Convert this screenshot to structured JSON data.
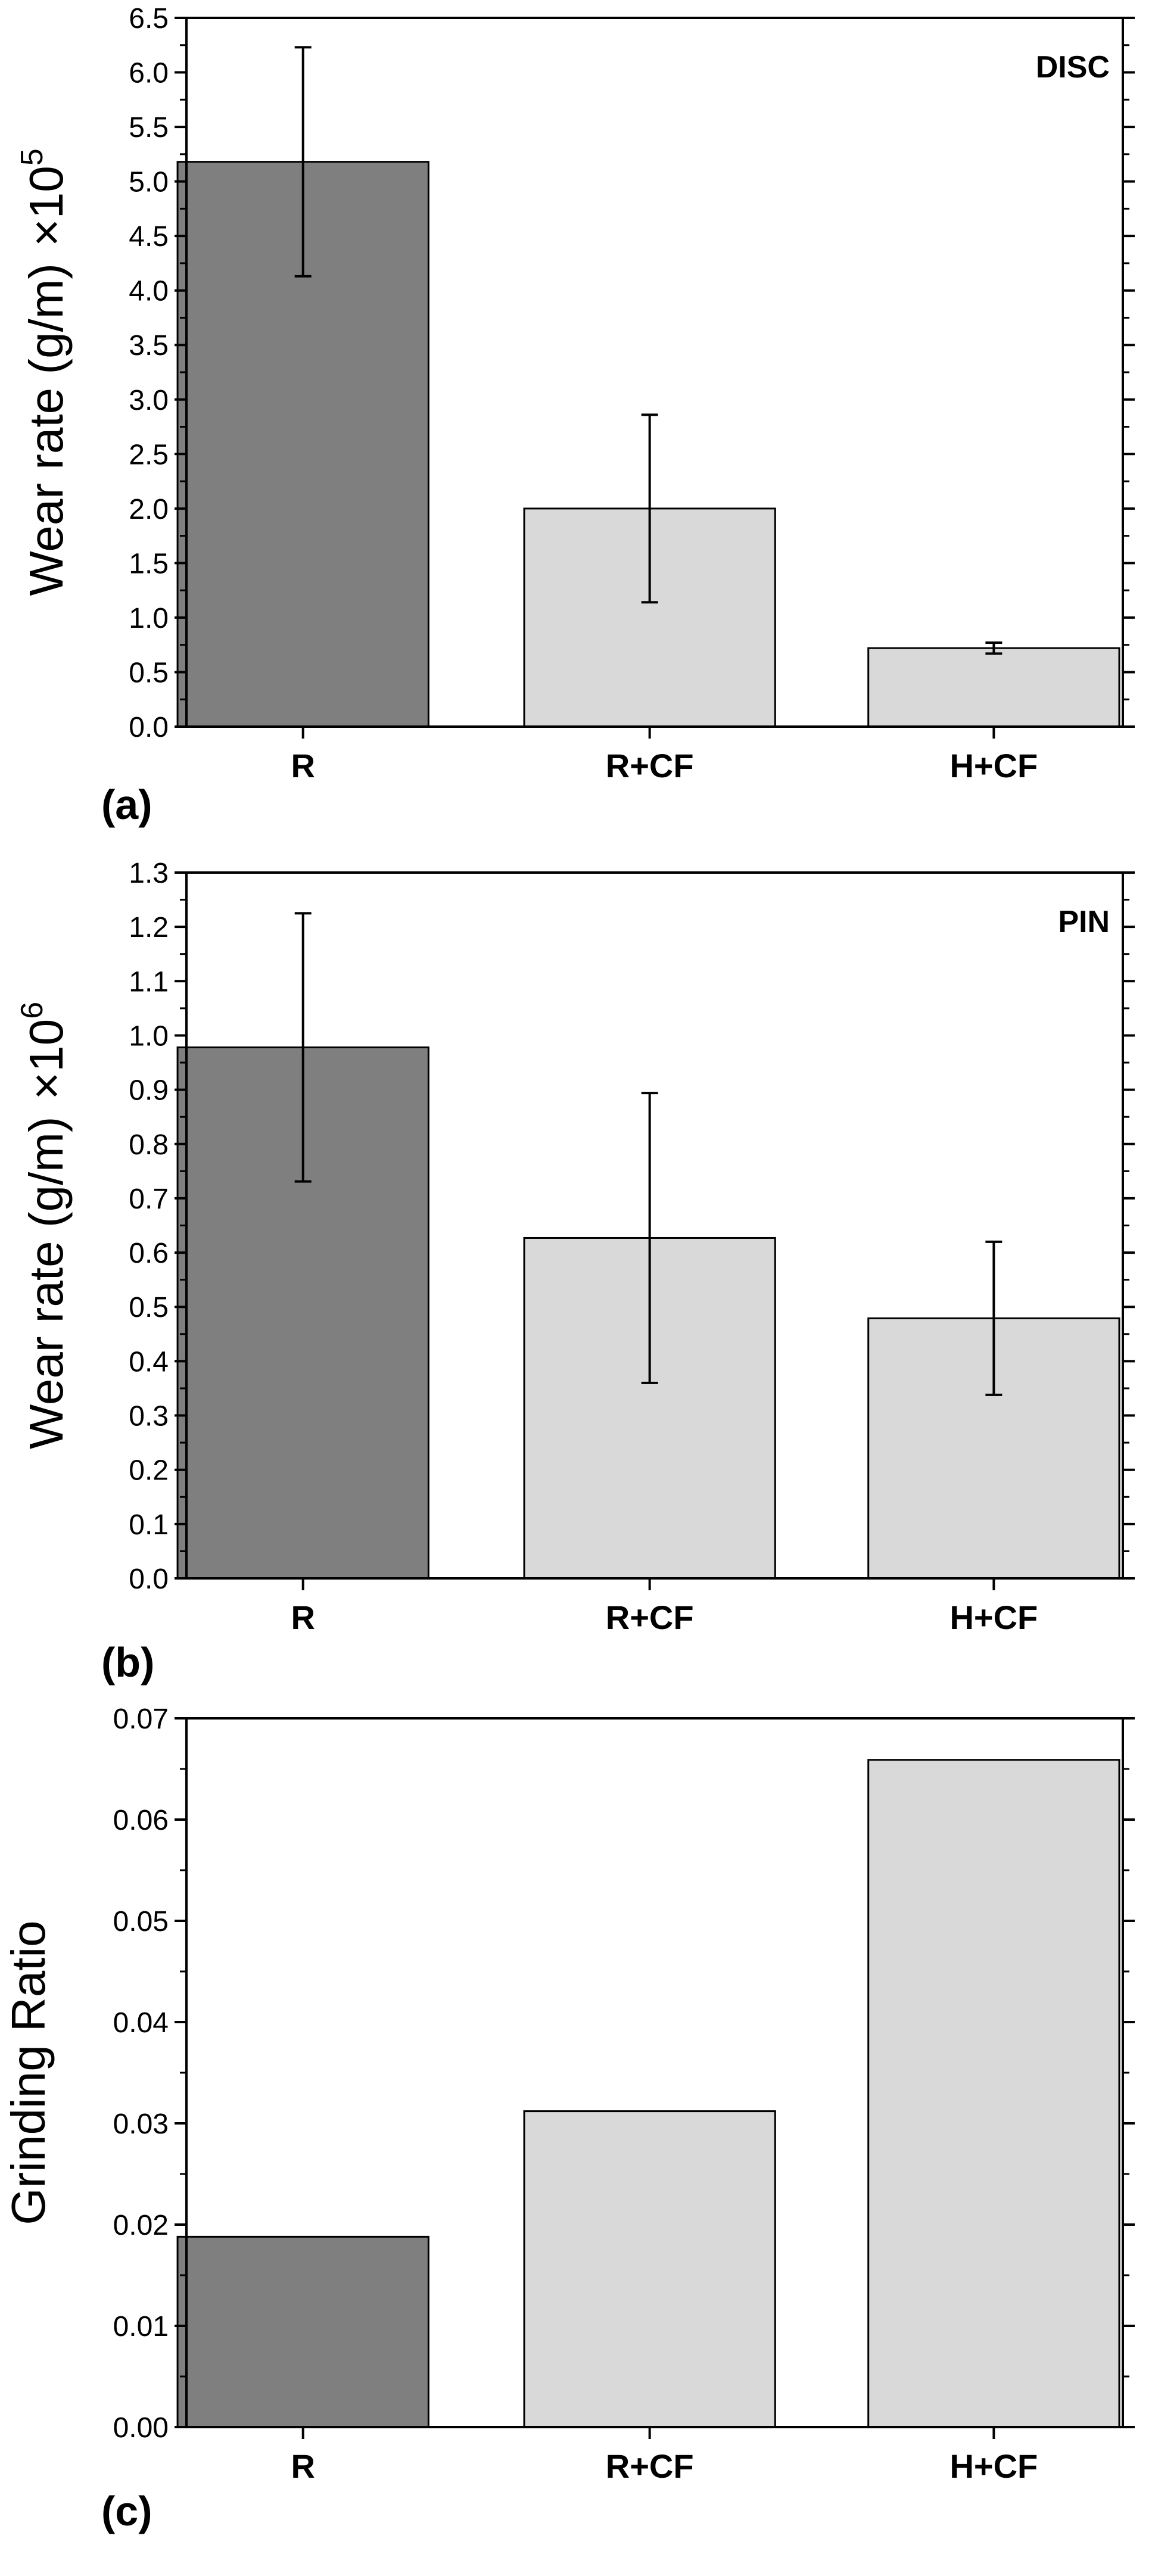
{
  "colors": {
    "dark_bar": "#7f7f7f",
    "light_bar": "#d9d9d9",
    "axis": "#000000"
  },
  "chart_data": [
    {
      "type": "bar",
      "panel": "(a)",
      "annotation": "DISC",
      "categories": [
        "R",
        "R+CF",
        "H+CF"
      ],
      "values": [
        5.18,
        2.0,
        0.72
      ],
      "errors": [
        1.05,
        0.86,
        0.05
      ],
      "bar_colors": [
        "#7f7f7f",
        "#d9d9d9",
        "#d9d9d9"
      ],
      "ylabel": "Wear rate (g/m)",
      "ylabel_multiplier": "×10",
      "ylabel_exponent": "5",
      "ylim": [
        0,
        6.5
      ],
      "yticks": [
        "0.0",
        "0.5",
        "1.0",
        "1.5",
        "2.0",
        "2.5",
        "3.0",
        "3.5",
        "4.0",
        "4.5",
        "5.0",
        "5.5",
        "6.0",
        "6.5"
      ]
    },
    {
      "type": "bar",
      "panel": "(b)",
      "annotation": "PIN",
      "categories": [
        "R",
        "R+CF",
        "H+CF"
      ],
      "values": [
        0.978,
        0.627,
        0.479
      ],
      "errors": [
        0.247,
        0.267,
        0.141
      ],
      "bar_colors": [
        "#7f7f7f",
        "#d9d9d9",
        "#d9d9d9"
      ],
      "ylabel": "Wear rate (g/m)",
      "ylabel_multiplier": "×10",
      "ylabel_exponent": "6",
      "ylim": [
        0,
        1.3
      ],
      "yticks": [
        "0.0",
        "0.1",
        "0.2",
        "0.3",
        "0.4",
        "0.5",
        "0.6",
        "0.7",
        "0.8",
        "0.9",
        "1.0",
        "1.1",
        "1.2",
        "1.3"
      ]
    },
    {
      "type": "bar",
      "panel": "(c)",
      "annotation": "",
      "categories": [
        "R",
        "R+CF",
        "H+CF"
      ],
      "values": [
        0.0188,
        0.0312,
        0.0659
      ],
      "errors": [],
      "bar_colors": [
        "#7f7f7f",
        "#d9d9d9",
        "#d9d9d9"
      ],
      "ylabel": "Grinding Ratio",
      "ylabel_multiplier": "",
      "ylabel_exponent": "",
      "ylim": [
        0,
        0.07
      ],
      "yticks": [
        "0.00",
        "0.01",
        "0.02",
        "0.03",
        "0.04",
        "0.05",
        "0.06",
        "0.07"
      ]
    }
  ]
}
